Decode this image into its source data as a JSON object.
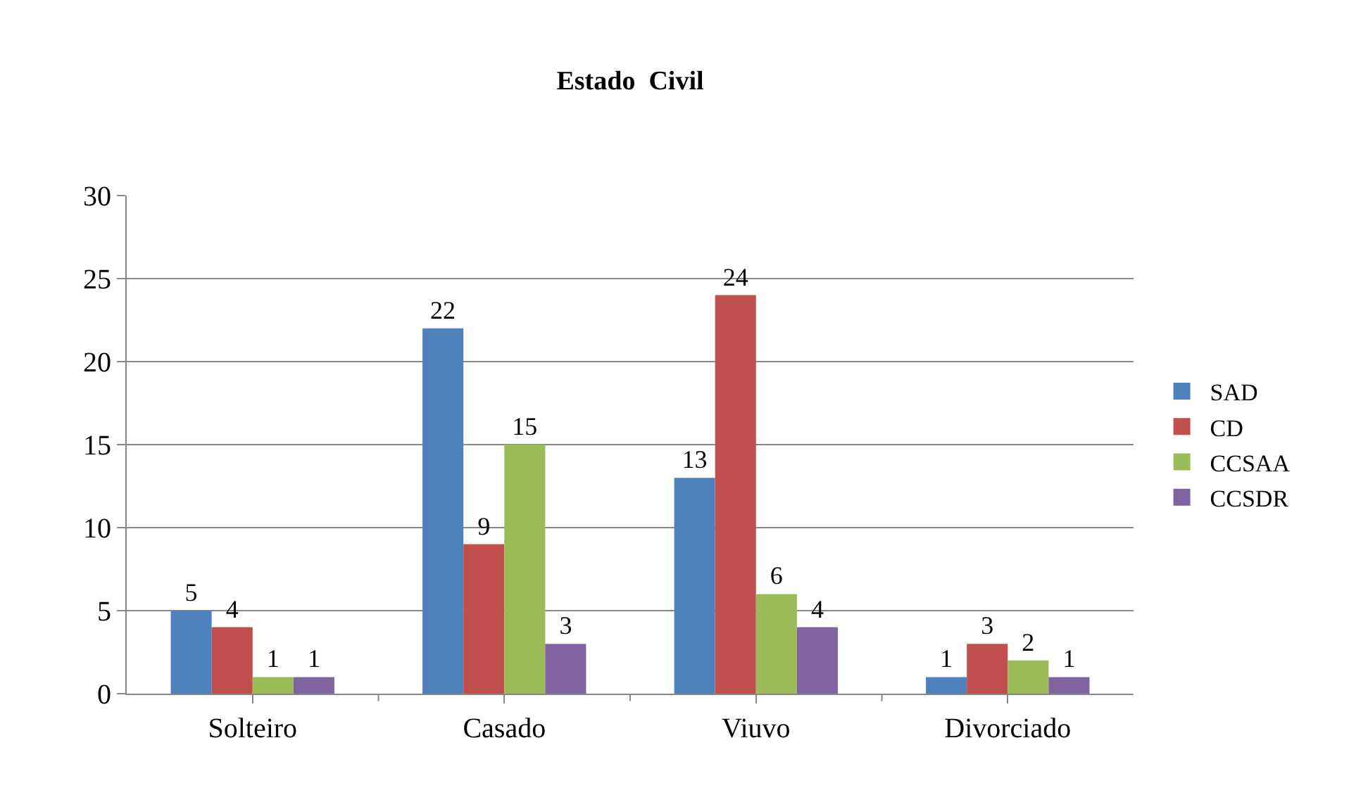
{
  "chart_data": {
    "type": "bar",
    "title": "Estado  Civil",
    "categories": [
      "Solteiro",
      "Casado",
      "Viuvo",
      "Divorciado"
    ],
    "series": [
      {
        "name": "SAD",
        "color": "#4f81bd",
        "values": [
          5,
          22,
          13,
          1
        ]
      },
      {
        "name": "CD",
        "color": "#c0504d",
        "values": [
          4,
          9,
          24,
          3
        ]
      },
      {
        "name": "CCSAA",
        "color": "#9bbb59",
        "values": [
          1,
          15,
          6,
          2
        ]
      },
      {
        "name": "CCSDR",
        "color": "#8064a2",
        "values": [
          1,
          3,
          4,
          1
        ]
      }
    ],
    "ylim": [
      0,
      30
    ],
    "yticks": [
      0,
      5,
      10,
      15,
      20,
      25,
      30
    ],
    "grid": "y",
    "legend": "right",
    "data_labels": true
  }
}
